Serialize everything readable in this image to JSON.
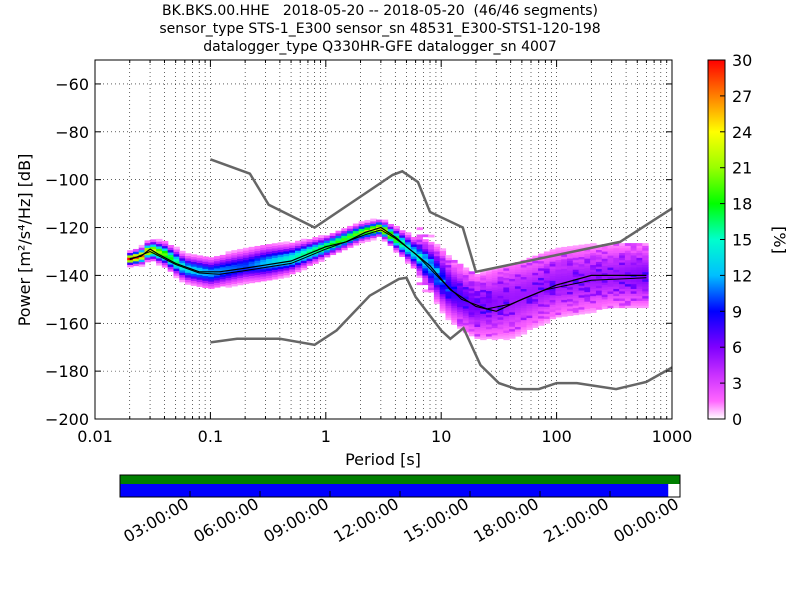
{
  "title": {
    "line1": "BK.BKS.00.HHE   2018-05-20 -- 2018-05-20  (46/46 segments)",
    "line2": "sensor_type STS-1_E300 sensor_sn 48531_E300-STS1-120-198",
    "line3": "datalogger_type Q330HR-GFE datalogger_sn 4007"
  },
  "chart_data": {
    "type": "heatmap",
    "xlabel": "Period [s]",
    "ylabel": "Power [m²/s⁴/Hz] [dB]",
    "xscale": "log",
    "xlim": [
      0.01,
      1000
    ],
    "ylim": [
      -200,
      -50
    ],
    "x_tick_labels": [
      "0.01",
      "0.1",
      "1",
      "10",
      "100",
      "1000"
    ],
    "x_ticks": [
      0.01,
      0.1,
      1,
      10,
      100,
      1000
    ],
    "y_ticks": [
      -200,
      -180,
      -160,
      -140,
      -120,
      -100,
      -80,
      -60
    ],
    "y_tick_labels": [
      "−200",
      "−180",
      "−160",
      "−140",
      "−120",
      "−100",
      "−80",
      "−60"
    ],
    "grid": "dotted",
    "colorbar": {
      "label": "[%]",
      "range": [
        0,
        30
      ],
      "ticks": [
        0,
        3,
        6,
        9,
        12,
        15,
        18,
        21,
        24,
        27,
        30
      ]
    },
    "noise_model_high": [
      [
        0.1,
        -91.5
      ],
      [
        0.22,
        -97.5
      ],
      [
        0.32,
        -110.5
      ],
      [
        0.8,
        -120.0
      ],
      [
        3.8,
        -98.0
      ],
      [
        4.6,
        -96.5
      ],
      [
        6.3,
        -101.0
      ],
      [
        8.0,
        -113.5
      ],
      [
        15.4,
        -120.0
      ],
      [
        20.0,
        -138.5
      ],
      [
        354,
        -126.0
      ],
      [
        1000,
        -112.0
      ]
    ],
    "noise_model_low": [
      [
        0.1,
        -168.0
      ],
      [
        0.17,
        -166.5
      ],
      [
        0.4,
        -166.5
      ],
      [
        0.8,
        -169.0
      ],
      [
        1.24,
        -163.0
      ],
      [
        2.4,
        -148.5
      ],
      [
        4.3,
        -141.5
      ],
      [
        5.0,
        -141.0
      ],
      [
        6.0,
        -149.0
      ],
      [
        10.0,
        -163.0
      ],
      [
        12.0,
        -166.5
      ],
      [
        15.6,
        -162.0
      ],
      [
        21.9,
        -177.5
      ],
      [
        31.6,
        -185.0
      ],
      [
        45,
        -187.5
      ],
      [
        70,
        -187.5
      ],
      [
        100,
        -185.0
      ],
      [
        150,
        -185.0
      ],
      [
        328,
        -187.5
      ],
      [
        600,
        -184.5
      ],
      [
        1000,
        -178.5
      ]
    ],
    "mode_curve": [
      [
        0.02,
        -133
      ],
      [
        0.025,
        -132
      ],
      [
        0.03,
        -129
      ],
      [
        0.035,
        -131
      ],
      [
        0.05,
        -135
      ],
      [
        0.08,
        -138.5
      ],
      [
        0.12,
        -138.5
      ],
      [
        0.2,
        -137
      ],
      [
        0.5,
        -134
      ],
      [
        1.0,
        -128
      ],
      [
        1.5,
        -126
      ],
      [
        2.2,
        -122
      ],
      [
        3.0,
        -120
      ],
      [
        4.0,
        -124
      ],
      [
        5.0,
        -128
      ],
      [
        8.0,
        -136
      ],
      [
        12.0,
        -146
      ],
      [
        20.0,
        -153
      ],
      [
        30.0,
        -155
      ],
      [
        50.0,
        -150
      ],
      [
        100.0,
        -144
      ],
      [
        200.0,
        -140
      ],
      [
        600.0,
        -140
      ]
    ],
    "mean_curve": [
      [
        0.02,
        -133.5
      ],
      [
        0.03,
        -130
      ],
      [
        0.05,
        -135.5
      ],
      [
        0.08,
        -139
      ],
      [
        0.12,
        -139.5
      ],
      [
        0.2,
        -138
      ],
      [
        0.5,
        -135
      ],
      [
        1.0,
        -129
      ],
      [
        2.2,
        -123
      ],
      [
        3.0,
        -121
      ],
      [
        4.0,
        -124.5
      ],
      [
        6.0,
        -131
      ],
      [
        10.0,
        -142
      ],
      [
        15.0,
        -150
      ],
      [
        25.0,
        -154
      ],
      [
        40.0,
        -152
      ],
      [
        80.0,
        -146
      ],
      [
        200.0,
        -142
      ],
      [
        600.0,
        -141
      ]
    ],
    "psd_density": [
      [
        0.02,
        -133,
        30
      ],
      [
        0.025,
        -132,
        28
      ],
      [
        0.03,
        -129,
        24
      ],
      [
        0.04,
        -131,
        20
      ],
      [
        0.06,
        -137,
        14
      ],
      [
        0.1,
        -139,
        12
      ],
      [
        0.2,
        -136,
        10
      ],
      [
        0.5,
        -133,
        15
      ],
      [
        1.0,
        -128,
        18
      ],
      [
        2.0,
        -122,
        20
      ],
      [
        3.0,
        -120,
        25
      ],
      [
        5.0,
        -128,
        15
      ],
      [
        8.0,
        -136,
        12
      ],
      [
        12.0,
        -146,
        8
      ],
      [
        20.0,
        -153,
        6
      ],
      [
        40.0,
        -150,
        5
      ],
      [
        100.0,
        -143,
        5
      ],
      [
        300.0,
        -140,
        5
      ],
      [
        600.0,
        -140,
        6
      ]
    ]
  },
  "timeline": {
    "labels": [
      "03:00:00",
      "06:00:00",
      "09:00:00",
      "12:00:00",
      "15:00:00",
      "18:00:00",
      "21:00:00",
      "00:00:00"
    ],
    "coverage_fraction": 0.979,
    "top_color": "#007f00",
    "bottom_color": "#0000ff"
  },
  "colors": {
    "noise_model": "#666666",
    "mode": "#000000",
    "mean": "#000000"
  }
}
